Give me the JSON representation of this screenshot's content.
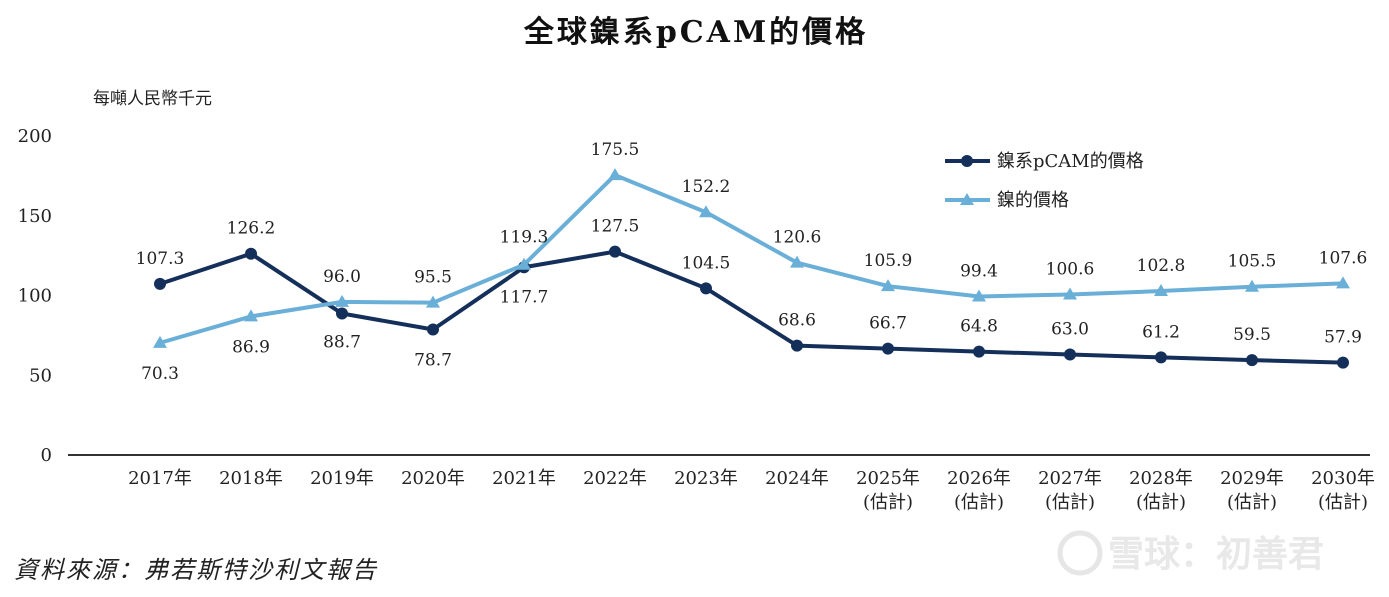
{
  "chart_data": {
    "type": "line",
    "title": "全球鎳系pCAM的價格",
    "ylabel": "每噸人民幣千元",
    "ylim": [
      0,
      200
    ],
    "yticks": [
      0,
      50,
      100,
      150,
      200
    ],
    "categories": [
      [
        "2017年"
      ],
      [
        "2018年"
      ],
      [
        "2019年"
      ],
      [
        "2020年"
      ],
      [
        "2021年"
      ],
      [
        "2022年"
      ],
      [
        "2023年"
      ],
      [
        "2024年"
      ],
      [
        "2025年",
        "(估計)"
      ],
      [
        "2026年",
        "(估計)"
      ],
      [
        "2027年",
        "(估計)"
      ],
      [
        "2028年",
        "(估計)"
      ],
      [
        "2029年",
        "(估計)"
      ],
      [
        "2030年",
        "(估計)"
      ]
    ],
    "series": [
      {
        "name": "鎳系pCAM的價格",
        "color": "#14305a",
        "marker": "circle",
        "values": [
          107.3,
          126.2,
          88.7,
          78.7,
          117.7,
          127.5,
          104.5,
          68.6,
          66.7,
          64.8,
          63.0,
          61.2,
          59.5,
          57.9
        ],
        "labels": [
          "107.3",
          "126.2",
          "88.7",
          "78.7",
          "117.7",
          "127.5",
          "104.5",
          "68.6",
          "66.7",
          "64.8",
          "63.0",
          "61.2",
          "59.5",
          "57.9"
        ]
      },
      {
        "name": "鎳的價格",
        "color": "#6aafd8",
        "marker": "triangle",
        "values": [
          70.3,
          86.9,
          96.0,
          95.5,
          119.3,
          175.5,
          152.2,
          120.6,
          105.9,
          99.4,
          100.6,
          102.8,
          105.5,
          107.6
        ],
        "labels": [
          "70.3",
          "86.9",
          "96.0",
          "95.5",
          "119.3",
          "175.5",
          "152.2",
          "120.6",
          "105.9",
          "99.4",
          "100.6",
          "102.8",
          "105.5",
          "107.6"
        ]
      }
    ],
    "legend_position": "top-right"
  },
  "source": "資料來源：弗若斯特沙利文報告",
  "watermark": "雪球：初善君"
}
